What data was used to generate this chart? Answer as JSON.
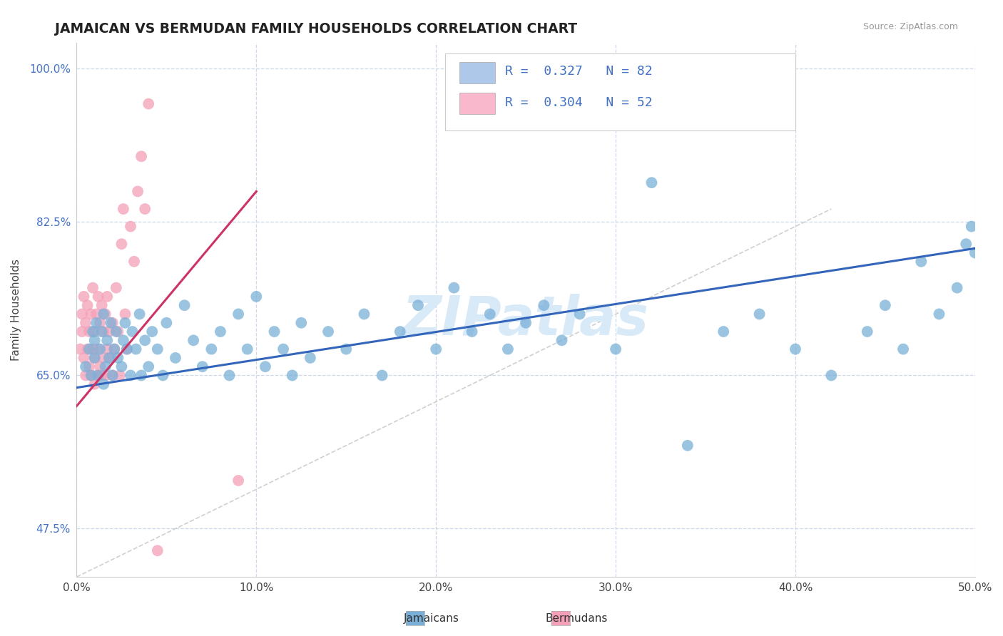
{
  "title": "JAMAICAN VS BERMUDAN FAMILY HOUSEHOLDS CORRELATION CHART",
  "source_text": "Source: ZipAtlas.com",
  "ylabel": "Family Households",
  "xlim": [
    0.0,
    0.5
  ],
  "ylim": [
    0.42,
    1.03
  ],
  "xtick_labels": [
    "0.0%",
    "10.0%",
    "20.0%",
    "30.0%",
    "40.0%",
    "50.0%"
  ],
  "xtick_vals": [
    0.0,
    0.1,
    0.2,
    0.3,
    0.4,
    0.5
  ],
  "ytick_labels": [
    "47.5%",
    "65.0%",
    "82.5%",
    "100.0%"
  ],
  "ytick_vals": [
    0.475,
    0.65,
    0.825,
    1.0
  ],
  "legend_items": [
    {
      "label": "R =  0.327   N = 82",
      "facecolor": "#adc8e8",
      "text_color": "#4472c4"
    },
    {
      "label": "R =  0.304   N = 52",
      "facecolor": "#f9b8cc",
      "text_color": "#4472c4"
    }
  ],
  "jamaican_scatter_color": "#7ab0d8",
  "bermudan_scatter_color": "#f4a0b8",
  "jamaican_line_color": "#3366bb",
  "bermudan_line_color": "#cc3366",
  "diagonal_color": "#c8c8c8",
  "grid_color": "#ccd8ea",
  "background_color": "#ffffff",
  "watermark_text": "ZIPatlas",
  "watermark_color": "#d8eaf8",
  "bottom_legend": [
    {
      "label": "Jamaicans",
      "color": "#7ab0d8"
    },
    {
      "label": "Bermudans",
      "color": "#f4a0b8"
    }
  ],
  "jamaican_x": [
    0.005,
    0.007,
    0.008,
    0.009,
    0.01,
    0.01,
    0.011,
    0.012,
    0.013,
    0.014,
    0.015,
    0.015,
    0.016,
    0.017,
    0.018,
    0.019,
    0.02,
    0.021,
    0.022,
    0.023,
    0.025,
    0.026,
    0.027,
    0.028,
    0.03,
    0.031,
    0.033,
    0.035,
    0.036,
    0.038,
    0.04,
    0.042,
    0.045,
    0.048,
    0.05,
    0.055,
    0.06,
    0.065,
    0.07,
    0.075,
    0.08,
    0.085,
    0.09,
    0.095,
    0.1,
    0.105,
    0.11,
    0.115,
    0.12,
    0.125,
    0.13,
    0.14,
    0.15,
    0.16,
    0.17,
    0.18,
    0.19,
    0.2,
    0.21,
    0.22,
    0.23,
    0.24,
    0.25,
    0.26,
    0.27,
    0.28,
    0.3,
    0.32,
    0.34,
    0.36,
    0.38,
    0.4,
    0.42,
    0.44,
    0.45,
    0.46,
    0.47,
    0.48,
    0.49,
    0.495,
    0.498,
    0.5
  ],
  "jamaican_y": [
    0.66,
    0.68,
    0.65,
    0.7,
    0.67,
    0.69,
    0.71,
    0.65,
    0.68,
    0.7,
    0.64,
    0.72,
    0.66,
    0.69,
    0.67,
    0.71,
    0.65,
    0.68,
    0.7,
    0.67,
    0.66,
    0.69,
    0.71,
    0.68,
    0.65,
    0.7,
    0.68,
    0.72,
    0.65,
    0.69,
    0.66,
    0.7,
    0.68,
    0.65,
    0.71,
    0.67,
    0.73,
    0.69,
    0.66,
    0.68,
    0.7,
    0.65,
    0.72,
    0.68,
    0.74,
    0.66,
    0.7,
    0.68,
    0.65,
    0.71,
    0.67,
    0.7,
    0.68,
    0.72,
    0.65,
    0.7,
    0.73,
    0.68,
    0.75,
    0.7,
    0.72,
    0.68,
    0.71,
    0.73,
    0.69,
    0.72,
    0.68,
    0.87,
    0.57,
    0.7,
    0.72,
    0.68,
    0.65,
    0.7,
    0.73,
    0.68,
    0.78,
    0.72,
    0.75,
    0.8,
    0.82,
    0.79
  ],
  "bermudan_x": [
    0.002,
    0.003,
    0.003,
    0.004,
    0.004,
    0.005,
    0.005,
    0.006,
    0.006,
    0.007,
    0.007,
    0.008,
    0.008,
    0.009,
    0.009,
    0.01,
    0.01,
    0.01,
    0.011,
    0.011,
    0.012,
    0.012,
    0.013,
    0.013,
    0.014,
    0.014,
    0.015,
    0.015,
    0.016,
    0.016,
    0.017,
    0.017,
    0.018,
    0.019,
    0.02,
    0.02,
    0.021,
    0.022,
    0.023,
    0.024,
    0.025,
    0.026,
    0.027,
    0.028,
    0.03,
    0.032,
    0.034,
    0.036,
    0.038,
    0.04,
    0.045,
    0.09
  ],
  "bermudan_y": [
    0.68,
    0.7,
    0.72,
    0.67,
    0.74,
    0.65,
    0.71,
    0.68,
    0.73,
    0.66,
    0.7,
    0.65,
    0.72,
    0.68,
    0.75,
    0.64,
    0.67,
    0.7,
    0.65,
    0.72,
    0.68,
    0.74,
    0.66,
    0.71,
    0.65,
    0.73,
    0.67,
    0.7,
    0.65,
    0.72,
    0.68,
    0.74,
    0.7,
    0.67,
    0.71,
    0.65,
    0.68,
    0.75,
    0.7,
    0.65,
    0.8,
    0.84,
    0.72,
    0.68,
    0.82,
    0.78,
    0.86,
    0.9,
    0.84,
    0.96,
    0.45,
    0.53
  ],
  "jamaican_trend": [
    0.0,
    0.5,
    0.636,
    0.795
  ],
  "bermudan_trend": [
    0.0,
    0.1,
    0.615,
    0.86
  ],
  "diag_line": [
    0.0,
    0.42,
    0.42,
    0.84
  ]
}
